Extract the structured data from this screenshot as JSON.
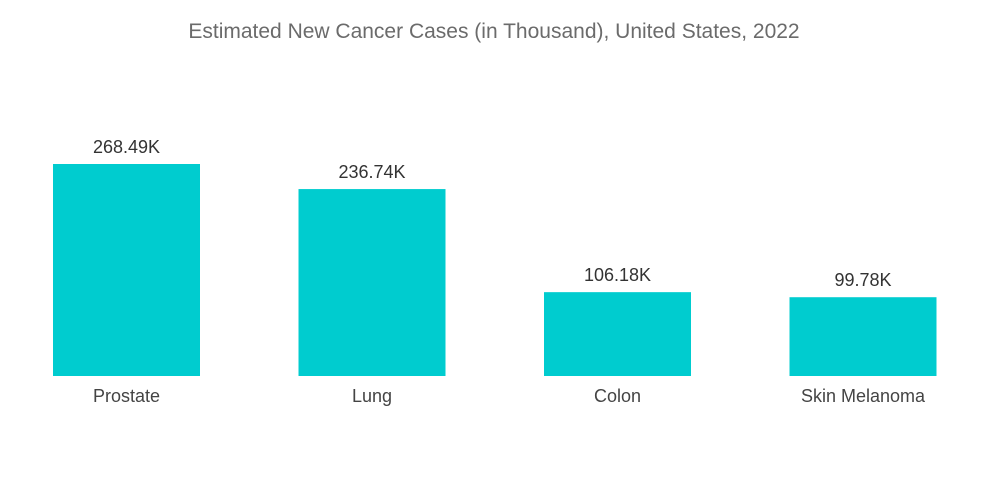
{
  "chart_data": {
    "type": "bar",
    "title": "Estimated New Cancer Cases (in Thousand), United States, 2022",
    "categories": [
      "Prostate",
      "Lung",
      "Colon",
      "Skin Melanoma"
    ],
    "values": [
      268.49,
      236.74,
      106.18,
      99.78
    ],
    "value_labels": [
      "268.49K",
      "236.74K",
      "106.18K",
      "99.78K"
    ],
    "xlabel": "",
    "ylabel": "",
    "ylim": [
      0,
      268.49
    ],
    "grid": false,
    "legend": "none",
    "bar_color": "#00cccf"
  }
}
